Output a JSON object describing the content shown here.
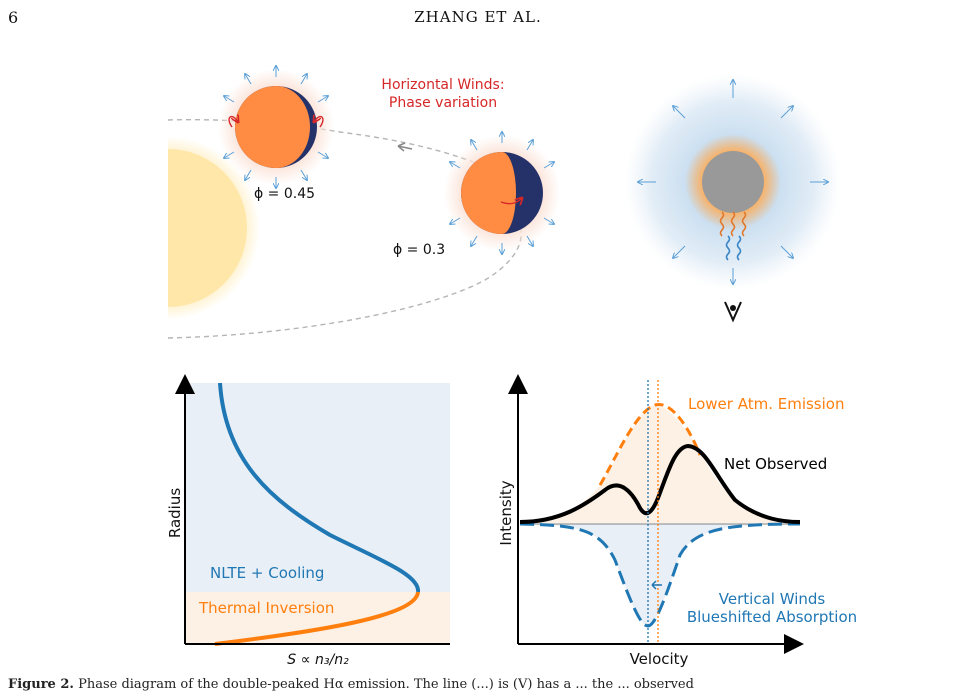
{
  "header": {
    "page_number": "6",
    "running_title": "ZHANG ET AL."
  },
  "top_panel": {
    "winds_title_line1": "Horizontal Winds:",
    "winds_title_line2": "Phase variation",
    "phase_label_1": "ϕ = 0.45",
    "phase_label_2": "ϕ = 0.3",
    "observer_icon": "eye-icon",
    "colors": {
      "star": "#fee7a8",
      "planet_day": "#ff8c42",
      "planet_night": "#25326a",
      "wind_arrow": "#5b9fd6",
      "wind_text": "#d62728",
      "atmosphere": "#b8d4ec"
    }
  },
  "left_plot": {
    "ylabel": "Radius",
    "xlabel": "S ∝ n₃/n₂",
    "region_upper_label": "NLTE + Cooling",
    "region_lower_label": "Thermal Inversion",
    "colors": {
      "nlte": "#1f77b4",
      "inversion": "#ff7f0e",
      "upper_bg": "#e8eff6",
      "lower_bg": "#fdf0e4"
    }
  },
  "right_plot": {
    "ylabel": "Intensity",
    "xlabel": "Velocity",
    "emission_label": "Lower Atm. Emission",
    "net_label": "Net Observed",
    "absorption_label_line1": "Vertical Winds",
    "absorption_label_line2": "Blueshifted Absorption",
    "colors": {
      "emission": "#ff7f0e",
      "absorption": "#1f77b4",
      "net": "#000000"
    }
  },
  "caption": {
    "lead": "Figure 2.",
    "text": "Phase diagram of the double-peaked Hα emission. The line (...) is (V) has a ... the ... observed"
  }
}
